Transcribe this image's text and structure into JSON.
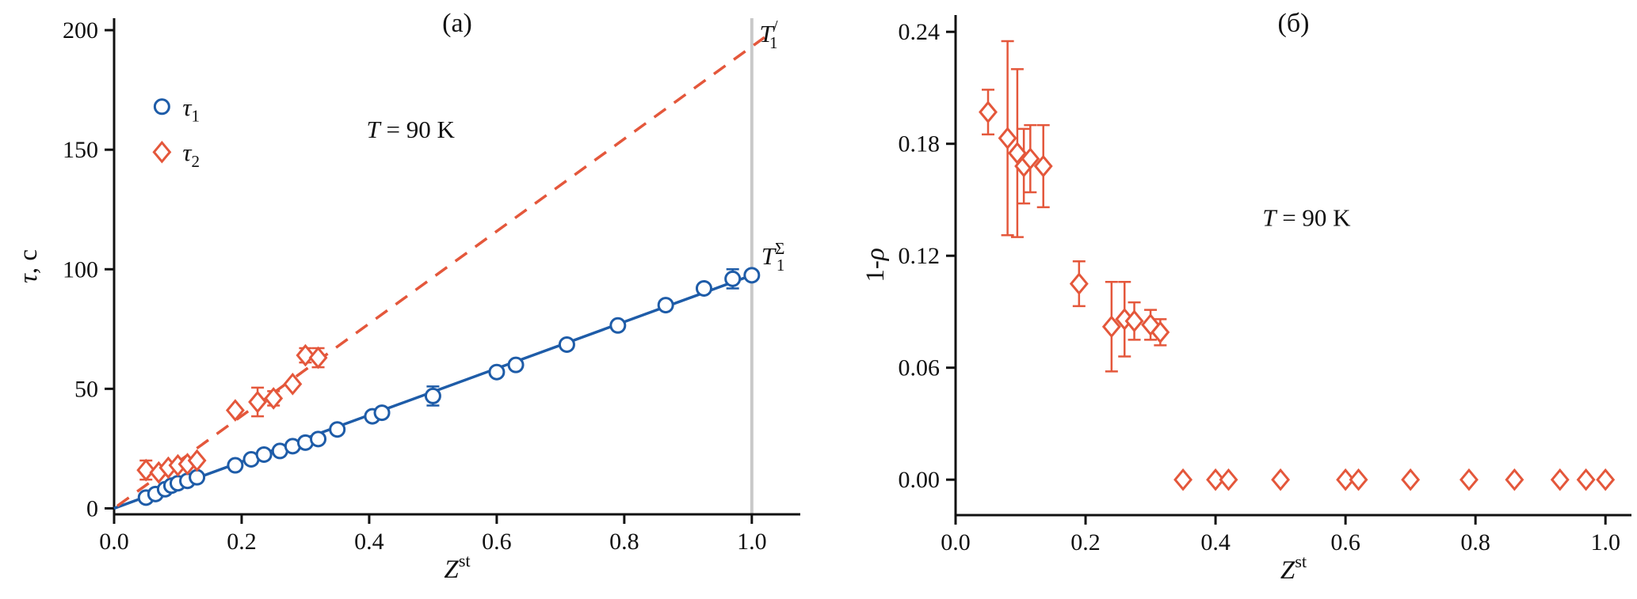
{
  "page": {
    "background": "#ffffff",
    "axis_color": "#111111"
  },
  "chart_data": [
    {
      "id": "a",
      "type": "scatter",
      "title": "(a)",
      "xlabel_parts": [
        {
          "t": "Z",
          "i": true,
          "sup": "st"
        }
      ],
      "ylabel_parts": [
        {
          "t": "τ",
          "i": true
        },
        {
          "t": ", с"
        }
      ],
      "xlim": [
        0,
        1.076
      ],
      "ylim": [
        -2.5,
        205
      ],
      "xticks": {
        "values": [
          0,
          0.2,
          0.4,
          0.6,
          0.8,
          1.0
        ],
        "labels": [
          "0.0",
          "0.2",
          "0.4",
          "0.6",
          "0.8",
          "1.0"
        ]
      },
      "yticks": {
        "values": [
          0,
          50,
          100,
          150,
          200
        ],
        "labels": [
          "0",
          "50",
          "100",
          "150",
          "200"
        ]
      },
      "grid": false,
      "legend_position": "upper-left-inside",
      "annotations": [
        {
          "x": 0.465,
          "y": 155,
          "anchor": "middle",
          "parts": [
            {
              "t": "T",
              "i": true
            },
            {
              "t": " = 90 K"
            }
          ]
        }
      ],
      "line_labels": [
        {
          "x": 1.012,
          "y": 195,
          "anchor": "start",
          "parts": [
            {
              "t": "T",
              "i": true,
              "sub": "1",
              "sup": "/"
            }
          ]
        },
        {
          "x": 1.015,
          "y": 102,
          "anchor": "start",
          "parts": [
            {
              "t": "T",
              "i": true,
              "sub": "1",
              "sup": "Σ"
            }
          ]
        }
      ],
      "vline": {
        "x": 1.0,
        "color": "#c9c9c9"
      },
      "legend": {
        "entries": [
          {
            "x": 0.075,
            "y": 168,
            "marker": "circle",
            "color": "#1e5ca8",
            "parts": [
              {
                "t": "τ",
                "i": true,
                "sub": "1"
              }
            ]
          },
          {
            "x": 0.075,
            "y": 149,
            "marker": "diamond",
            "color": "#e4573b",
            "parts": [
              {
                "t": "τ",
                "i": true,
                "sub": "2"
              }
            ]
          }
        ]
      },
      "series": [
        {
          "name": "tau1",
          "marker": "circle",
          "color": "#1e5ca8",
          "fit_line": {
            "style": "solid",
            "x1": 0,
            "y1": 0,
            "x2": 1.005,
            "y2": 98
          },
          "points": [
            [
              0.05,
              4.5,
              0
            ],
            [
              0.065,
              6,
              0
            ],
            [
              0.08,
              8,
              0
            ],
            [
              0.09,
              9.5,
              0
            ],
            [
              0.1,
              10.5,
              0
            ],
            [
              0.115,
              11.5,
              0
            ],
            [
              0.13,
              13,
              0
            ],
            [
              0.19,
              18,
              0
            ],
            [
              0.215,
              20.5,
              0
            ],
            [
              0.235,
              22.5,
              0
            ],
            [
              0.26,
              24,
              0
            ],
            [
              0.28,
              26,
              0
            ],
            [
              0.3,
              27.5,
              0
            ],
            [
              0.32,
              29,
              0
            ],
            [
              0.35,
              33,
              0
            ],
            [
              0.405,
              38.5,
              0
            ],
            [
              0.42,
              40,
              0
            ],
            [
              0.5,
              47,
              4
            ],
            [
              0.6,
              57,
              0
            ],
            [
              0.63,
              60,
              0
            ],
            [
              0.71,
              68.5,
              0
            ],
            [
              0.79,
              76.5,
              0
            ],
            [
              0.865,
              85,
              0
            ],
            [
              0.925,
              92,
              0
            ],
            [
              0.97,
              96,
              4
            ],
            [
              1.0,
              97.5,
              0
            ]
          ]
        },
        {
          "name": "tau2",
          "marker": "diamond",
          "color": "#e4573b",
          "fit_line": {
            "style": "dashed",
            "x1": 0.005,
            "y1": 1,
            "x2": 1.02,
            "y2": 197
          },
          "points": [
            [
              0.05,
              16,
              4
            ],
            [
              0.07,
              15,
              0
            ],
            [
              0.085,
              17,
              0
            ],
            [
              0.1,
              18,
              0
            ],
            [
              0.115,
              18.5,
              0
            ],
            [
              0.13,
              20,
              0
            ],
            [
              0.19,
              41,
              0
            ],
            [
              0.225,
              44.5,
              6
            ],
            [
              0.25,
              46,
              3
            ],
            [
              0.28,
              52,
              0
            ],
            [
              0.3,
              64,
              3
            ],
            [
              0.32,
              63,
              4
            ]
          ]
        }
      ]
    },
    {
      "id": "b",
      "type": "scatter",
      "title": "(б)",
      "xlabel_parts": [
        {
          "t": "Z",
          "i": true,
          "sup": "st"
        }
      ],
      "ylabel_parts": [
        {
          "t": "1-"
        },
        {
          "t": "ρ",
          "i": true
        }
      ],
      "xlim": [
        0,
        1.04
      ],
      "ylim": [
        -0.019,
        0.249
      ],
      "xticks": {
        "values": [
          0,
          0.2,
          0.4,
          0.6,
          0.8,
          1.0
        ],
        "labels": [
          "0.0",
          "0.2",
          "0.4",
          "0.6",
          "0.8",
          "1.0"
        ]
      },
      "yticks": {
        "values": [
          0,
          0.06,
          0.12,
          0.18,
          0.24
        ],
        "labels": [
          "0.00",
          "0.06",
          "0.12",
          "0.18",
          "0.24"
        ]
      },
      "grid": false,
      "annotations": [
        {
          "x": 0.54,
          "y": 0.136,
          "anchor": "middle",
          "parts": [
            {
              "t": "T",
              "i": true
            },
            {
              "t": " = 90 K"
            }
          ]
        }
      ],
      "series": [
        {
          "name": "one-minus-rho",
          "marker": "diamond",
          "color": "#e4573b",
          "points": [
            [
              0.05,
              0.197,
              0.012
            ],
            [
              0.08,
              0.183,
              0.052
            ],
            [
              0.095,
              0.175,
              0.045
            ],
            [
              0.105,
              0.168,
              0.02
            ],
            [
              0.115,
              0.172,
              0.018
            ],
            [
              0.135,
              0.168,
              0.022
            ],
            [
              0.19,
              0.105,
              0.012
            ],
            [
              0.24,
              0.082,
              0.024
            ],
            [
              0.26,
              0.086,
              0.02
            ],
            [
              0.275,
              0.085,
              0.01
            ],
            [
              0.3,
              0.083,
              0.008
            ],
            [
              0.315,
              0.079,
              0.007
            ],
            [
              0.35,
              0,
              0
            ],
            [
              0.4,
              0,
              0
            ],
            [
              0.42,
              0,
              0
            ],
            [
              0.5,
              0,
              0
            ],
            [
              0.6,
              0,
              0
            ],
            [
              0.62,
              0,
              0
            ],
            [
              0.7,
              0,
              0
            ],
            [
              0.79,
              0,
              0
            ],
            [
              0.86,
              0,
              0
            ],
            [
              0.93,
              0,
              0
            ],
            [
              0.97,
              0,
              0
            ],
            [
              1.0,
              0,
              0
            ]
          ]
        }
      ]
    }
  ]
}
